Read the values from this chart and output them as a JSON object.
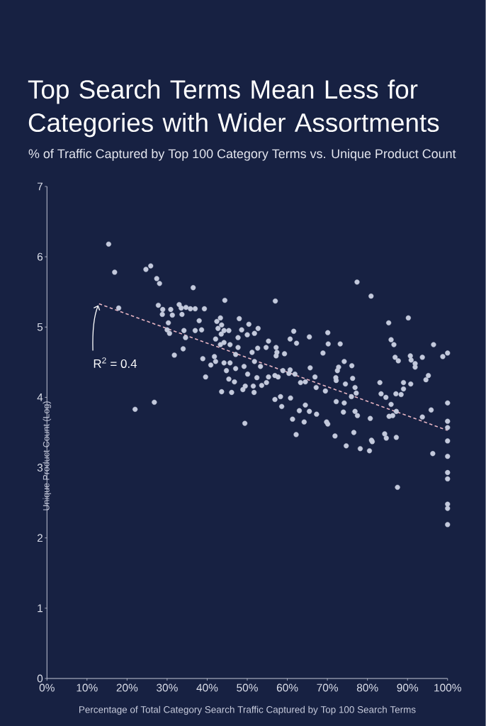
{
  "chart_data": {
    "type": "scatter",
    "title": "Top Search Terms Mean Less for Categories with Wider Assortments",
    "subtitle": "% of Traffic Captured by Top 100 Category Terms vs. Unique Product Count",
    "xlabel": "Percentage of Total Category Search Traffic Captured by Top 100 Search Terms",
    "ylabel": "Unique Product Count (Log)",
    "annotations": [
      {
        "text": "R$^{2}$ = 0.4",
        "x": 13,
        "y": 5.33
      }
    ],
    "xlim": [
      0,
      100
    ],
    "xticks": [
      {
        "value": 0,
        "label": "0%"
      },
      {
        "value": 10,
        "label": "10%"
      },
      {
        "value": 20,
        "label": "20%"
      },
      {
        "value": 30,
        "label": "30%"
      },
      {
        "value": 40,
        "label": "40%"
      },
      {
        "value": 50,
        "label": "50%"
      },
      {
        "value": 60,
        "label": "60%"
      },
      {
        "value": 70,
        "label": "70%"
      },
      {
        "value": 80,
        "label": "80%"
      },
      {
        "value": 90,
        "label": "90%"
      },
      {
        "value": 100,
        "label": "100%"
      }
    ],
    "ylim": [
      0,
      7
    ],
    "yticks": [
      0,
      1,
      2,
      3,
      4,
      5,
      6,
      7
    ],
    "marker": "circle",
    "series": [
      {
        "type": "scatter",
        "color": "#c3c9dc",
        "x": [
          15.4,
          16.9,
          24.7,
          25.9,
          27.4,
          28.1,
          36.5,
          44.4,
          17.9,
          27.8,
          28.9,
          28.8,
          30.9,
          31.3,
          33.0,
          33.5,
          33.7,
          34.7,
          35.8,
          37.0,
          39.3,
          30.3,
          30.6,
          30.0,
          34.2,
          34.6,
          37.0,
          38.6,
          38.0,
          34.0,
          31.8,
          38.9,
          39.6,
          41.8,
          42.1,
          40.9,
          43.3,
          42.4,
          43.6,
          42.7,
          44.2,
          45.4,
          43.5,
          42.1,
          44.2,
          43.3,
          45.7,
          48.0,
          50.4,
          48.6,
          50.0,
          51.8,
          52.7,
          47.7,
          52.6,
          44.2,
          45.7,
          47.1,
          44.8,
          49.2,
          51.8,
          53.3,
          45.4,
          46.8,
          49.5,
          51.5,
          43.6,
          46.1,
          48.9,
          51.7,
          52.4,
          22.0,
          26.8,
          49.4,
          47.7,
          51.2,
          50.1,
          47.1,
          57.0,
          77.4,
          80.9,
          90.2,
          85.3,
          85.9,
          86.6,
          96.5,
          100,
          98.8,
          86.9,
          87.7,
          90.7,
          90.9,
          91.9,
          91.9,
          93.7,
          95.2,
          94.6,
          55.3,
          54.7,
          57.2,
          57.4,
          57.2,
          59.3,
          61.6,
          60.7,
          62.3,
          65.5,
          70.1,
          70.2,
          73.2,
          68.9,
          74.2,
          76.1,
          72.8,
          72.5,
          65.7,
          66.9,
          64.5,
          63.3,
          60.7,
          58.9,
          61.9,
          60.4,
          55.3,
          56.9,
          57.7,
          54.8,
          53.6,
          72.1,
          72.2,
          74.5,
          76.3,
          76.9,
          77.2,
          76.0,
          74.2,
          72.2,
          69.5,
          67.2,
          83.1,
          83.4,
          84.6,
          87.1,
          88.4,
          89.0,
          89.0,
          90.8,
          85.9,
          87.2,
          85.4,
          86.3,
          56.9,
          58.3,
          58.6,
          60.8,
          63.0,
          65.5,
          64.5,
          67.3,
          61.3,
          64.2,
          62.2,
          69.8,
          70.1,
          71.9,
          76.6,
          76.9,
          77.5,
          80.7,
          84.3,
          87.2,
          95.9,
          93.7,
          100,
          100,
          100,
          74.7,
          78.2,
          80.5,
          84.7,
          81.0,
          81.2,
          100,
          100,
          100,
          100,
          100,
          100,
          100,
          96.3,
          87.5,
          74.0
        ],
        "values": [
          6.18,
          5.78,
          5.82,
          5.87,
          5.69,
          5.62,
          5.56,
          5.38,
          5.27,
          5.31,
          5.25,
          5.18,
          5.25,
          5.17,
          5.32,
          5.27,
          5.18,
          5.28,
          5.26,
          5.26,
          5.26,
          5.06,
          4.91,
          4.96,
          4.95,
          4.85,
          4.95,
          4.96,
          5.09,
          4.69,
          4.6,
          4.55,
          4.29,
          4.58,
          4.51,
          4.46,
          5.13,
          5.08,
          5.03,
          4.98,
          4.95,
          4.95,
          4.9,
          4.83,
          4.78,
          4.75,
          4.75,
          5.12,
          5.04,
          4.96,
          4.89,
          4.91,
          4.98,
          4.71,
          4.7,
          4.49,
          4.49,
          4.41,
          4.38,
          4.44,
          4.51,
          4.44,
          4.26,
          4.22,
          4.16,
          4.16,
          4.08,
          4.07,
          4.11,
          4.07,
          4.28,
          3.83,
          3.93,
          3.63,
          4.85,
          4.64,
          4.33,
          4.61,
          5.37,
          5.64,
          5.44,
          5.13,
          5.06,
          4.82,
          4.75,
          4.75,
          4.63,
          4.58,
          4.57,
          4.52,
          4.59,
          4.53,
          4.48,
          4.43,
          4.57,
          4.31,
          4.25,
          4.8,
          4.71,
          4.71,
          4.64,
          4.59,
          4.62,
          4.94,
          4.83,
          4.77,
          4.86,
          4.92,
          4.76,
          4.76,
          4.63,
          4.51,
          4.45,
          4.43,
          4.38,
          4.42,
          4.29,
          4.22,
          4.21,
          4.39,
          4.38,
          4.33,
          4.34,
          4.29,
          4.31,
          4.29,
          4.21,
          4.17,
          4.28,
          4.24,
          4.19,
          4.27,
          4.14,
          4.06,
          4.01,
          3.92,
          3.94,
          4.09,
          4.14,
          4.21,
          4.05,
          4.0,
          4.05,
          4.04,
          4.21,
          4.12,
          4.19,
          3.9,
          3.8,
          3.73,
          3.74,
          3.97,
          4.01,
          3.87,
          3.99,
          3.81,
          3.8,
          3.89,
          3.76,
          3.69,
          3.65,
          3.47,
          3.65,
          3.62,
          3.45,
          3.5,
          3.8,
          3.74,
          3.7,
          3.48,
          3.43,
          3.82,
          3.72,
          3.92,
          3.66,
          3.57,
          3.31,
          3.27,
          3.24,
          3.42,
          3.39,
          3.37,
          3.38,
          3.16,
          2.93,
          2.84,
          2.48,
          2.42,
          2.19,
          3.2,
          2.72,
          3.79
        ]
      },
      {
        "type": "line",
        "color": "#e8b6c4",
        "line_style": "dashed",
        "marker": "none",
        "x": [
          13,
          100
        ],
        "values": [
          5.33,
          3.53
        ]
      }
    ]
  }
}
